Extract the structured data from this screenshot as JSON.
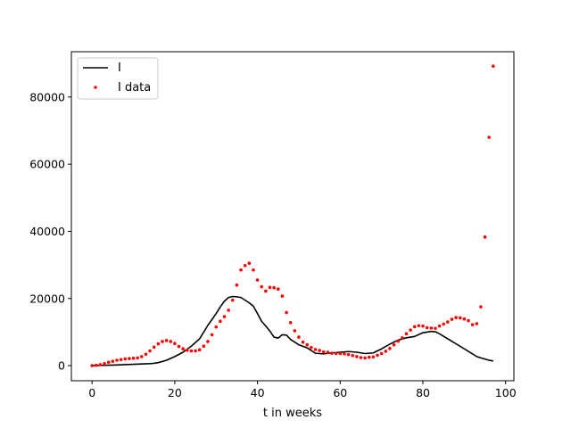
{
  "chart_data": {
    "type": "line",
    "title": "",
    "xlabel": "t in weeks",
    "ylabel": "",
    "xlim": [
      -5,
      102
    ],
    "ylim": [
      -4500,
      93500
    ],
    "xticks": [
      0,
      20,
      40,
      60,
      80,
      100
    ],
    "yticks": [
      0,
      20000,
      40000,
      60000,
      80000
    ],
    "grid": false,
    "legend_placement": "top-left",
    "series": [
      {
        "name": "I",
        "kind": "line",
        "color": "#000000",
        "x": [
          0,
          2,
          4,
          6,
          8,
          10,
          12,
          14,
          15,
          16,
          18,
          20,
          22,
          24,
          26,
          27,
          28,
          30,
          31,
          32,
          33,
          34,
          35,
          36,
          37,
          38,
          39,
          40,
          41,
          42,
          43,
          44,
          45,
          46,
          47,
          48,
          49,
          50,
          52,
          54,
          56,
          58,
          60,
          62,
          64,
          66,
          68,
          70,
          72,
          74,
          76,
          78,
          80,
          82,
          83,
          84,
          86,
          88,
          90,
          92,
          93,
          94,
          96,
          97
        ],
        "y": [
          0,
          50,
          120,
          200,
          300,
          400,
          500,
          600,
          700,
          900,
          1600,
          2700,
          4000,
          5800,
          8000,
          10000,
          12000,
          15500,
          17500,
          19200,
          20300,
          20600,
          20500,
          20300,
          19500,
          18700,
          17700,
          15500,
          13200,
          11800,
          10300,
          8500,
          8200,
          9200,
          9100,
          7800,
          7000,
          6200,
          5300,
          3700,
          3500,
          3800,
          4000,
          4200,
          4000,
          3600,
          3800,
          5000,
          6400,
          7600,
          8300,
          8700,
          9800,
          10200,
          10100,
          9500,
          8000,
          6500,
          5000,
          3500,
          2700,
          2300,
          1600,
          1400
        ]
      },
      {
        "name": "I data",
        "kind": "scatter",
        "color": "#ff0000",
        "x": [
          0,
          1,
          2,
          3,
          4,
          5,
          6,
          7,
          8,
          9,
          10,
          11,
          12,
          13,
          14,
          15,
          16,
          17,
          18,
          19,
          20,
          21,
          22,
          23,
          24,
          25,
          26,
          27,
          28,
          29,
          30,
          31,
          32,
          33,
          34,
          35,
          36,
          37,
          38,
          39,
          40,
          41,
          42,
          43,
          44,
          45,
          46,
          47,
          48,
          49,
          50,
          51,
          52,
          53,
          54,
          55,
          56,
          57,
          58,
          59,
          60,
          61,
          62,
          63,
          64,
          65,
          66,
          67,
          68,
          69,
          70,
          71,
          72,
          73,
          74,
          75,
          76,
          77,
          78,
          79,
          80,
          81,
          82,
          83,
          84,
          85,
          86,
          87,
          88,
          89,
          90,
          91,
          92,
          93,
          94,
          95,
          96,
          97
        ],
        "y": [
          0,
          100,
          300,
          600,
          1000,
          1300,
          1600,
          1800,
          2000,
          2100,
          2200,
          2300,
          2700,
          3400,
          4400,
          5500,
          6500,
          7200,
          7500,
          7200,
          6600,
          5700,
          5000,
          4600,
          4400,
          4400,
          4700,
          5800,
          7200,
          9200,
          11500,
          13200,
          14600,
          16500,
          19500,
          24000,
          28500,
          29800,
          30500,
          28500,
          25500,
          23500,
          22200,
          23300,
          23200,
          22800,
          20700,
          15800,
          12800,
          10400,
          8500,
          7000,
          6200,
          5400,
          4800,
          4500,
          4100,
          4000,
          3700,
          3600,
          3600,
          3500,
          3300,
          3000,
          2700,
          2400,
          2300,
          2500,
          2600,
          3100,
          3600,
          4300,
          5100,
          6200,
          7300,
          8300,
          9500,
          10600,
          11600,
          11900,
          11800,
          11300,
          11200,
          11100,
          11800,
          12400,
          13000,
          13800,
          14300,
          14200,
          13900,
          13400,
          12200,
          12500,
          17500,
          38300,
          68000,
          89200
        ]
      }
    ]
  }
}
